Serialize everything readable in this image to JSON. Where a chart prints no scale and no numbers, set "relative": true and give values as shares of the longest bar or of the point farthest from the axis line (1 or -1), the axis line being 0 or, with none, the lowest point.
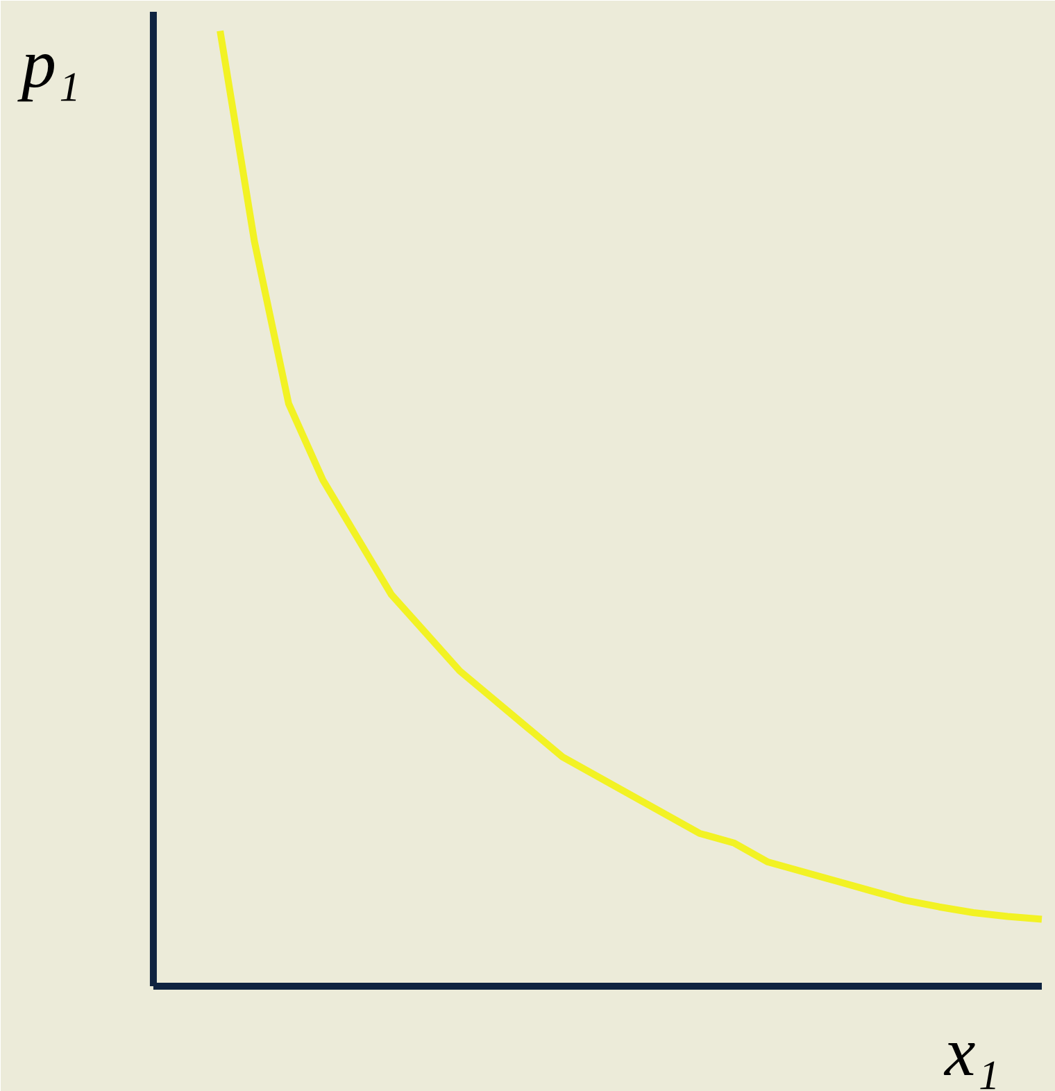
{
  "chart_data": {
    "type": "line",
    "relative": true,
    "xlabel": "x₁",
    "ylabel": "p₁",
    "marker": "none",
    "line_style": "solid",
    "categories": [
      null,
      null,
      null,
      null,
      null,
      null,
      null,
      null,
      null,
      null,
      null,
      null,
      null,
      null,
      null,
      null,
      null,
      null,
      null,
      null,
      null,
      null,
      null,
      null,
      null
    ],
    "series": [
      {
        "color": "#f2f224",
        "values": [
          1,
          0.78,
          0.61,
          0.53,
          0.47,
          0.41,
          0.37,
          0.33,
          0.3,
          0.27,
          0.24,
          0.22,
          0.2,
          0.18,
          0.16,
          0.15,
          0.13,
          0.12,
          0.11,
          0.1,
          0.09,
          0.083,
          0.077,
          0.073,
          0.07
        ]
      }
    ]
  }
}
